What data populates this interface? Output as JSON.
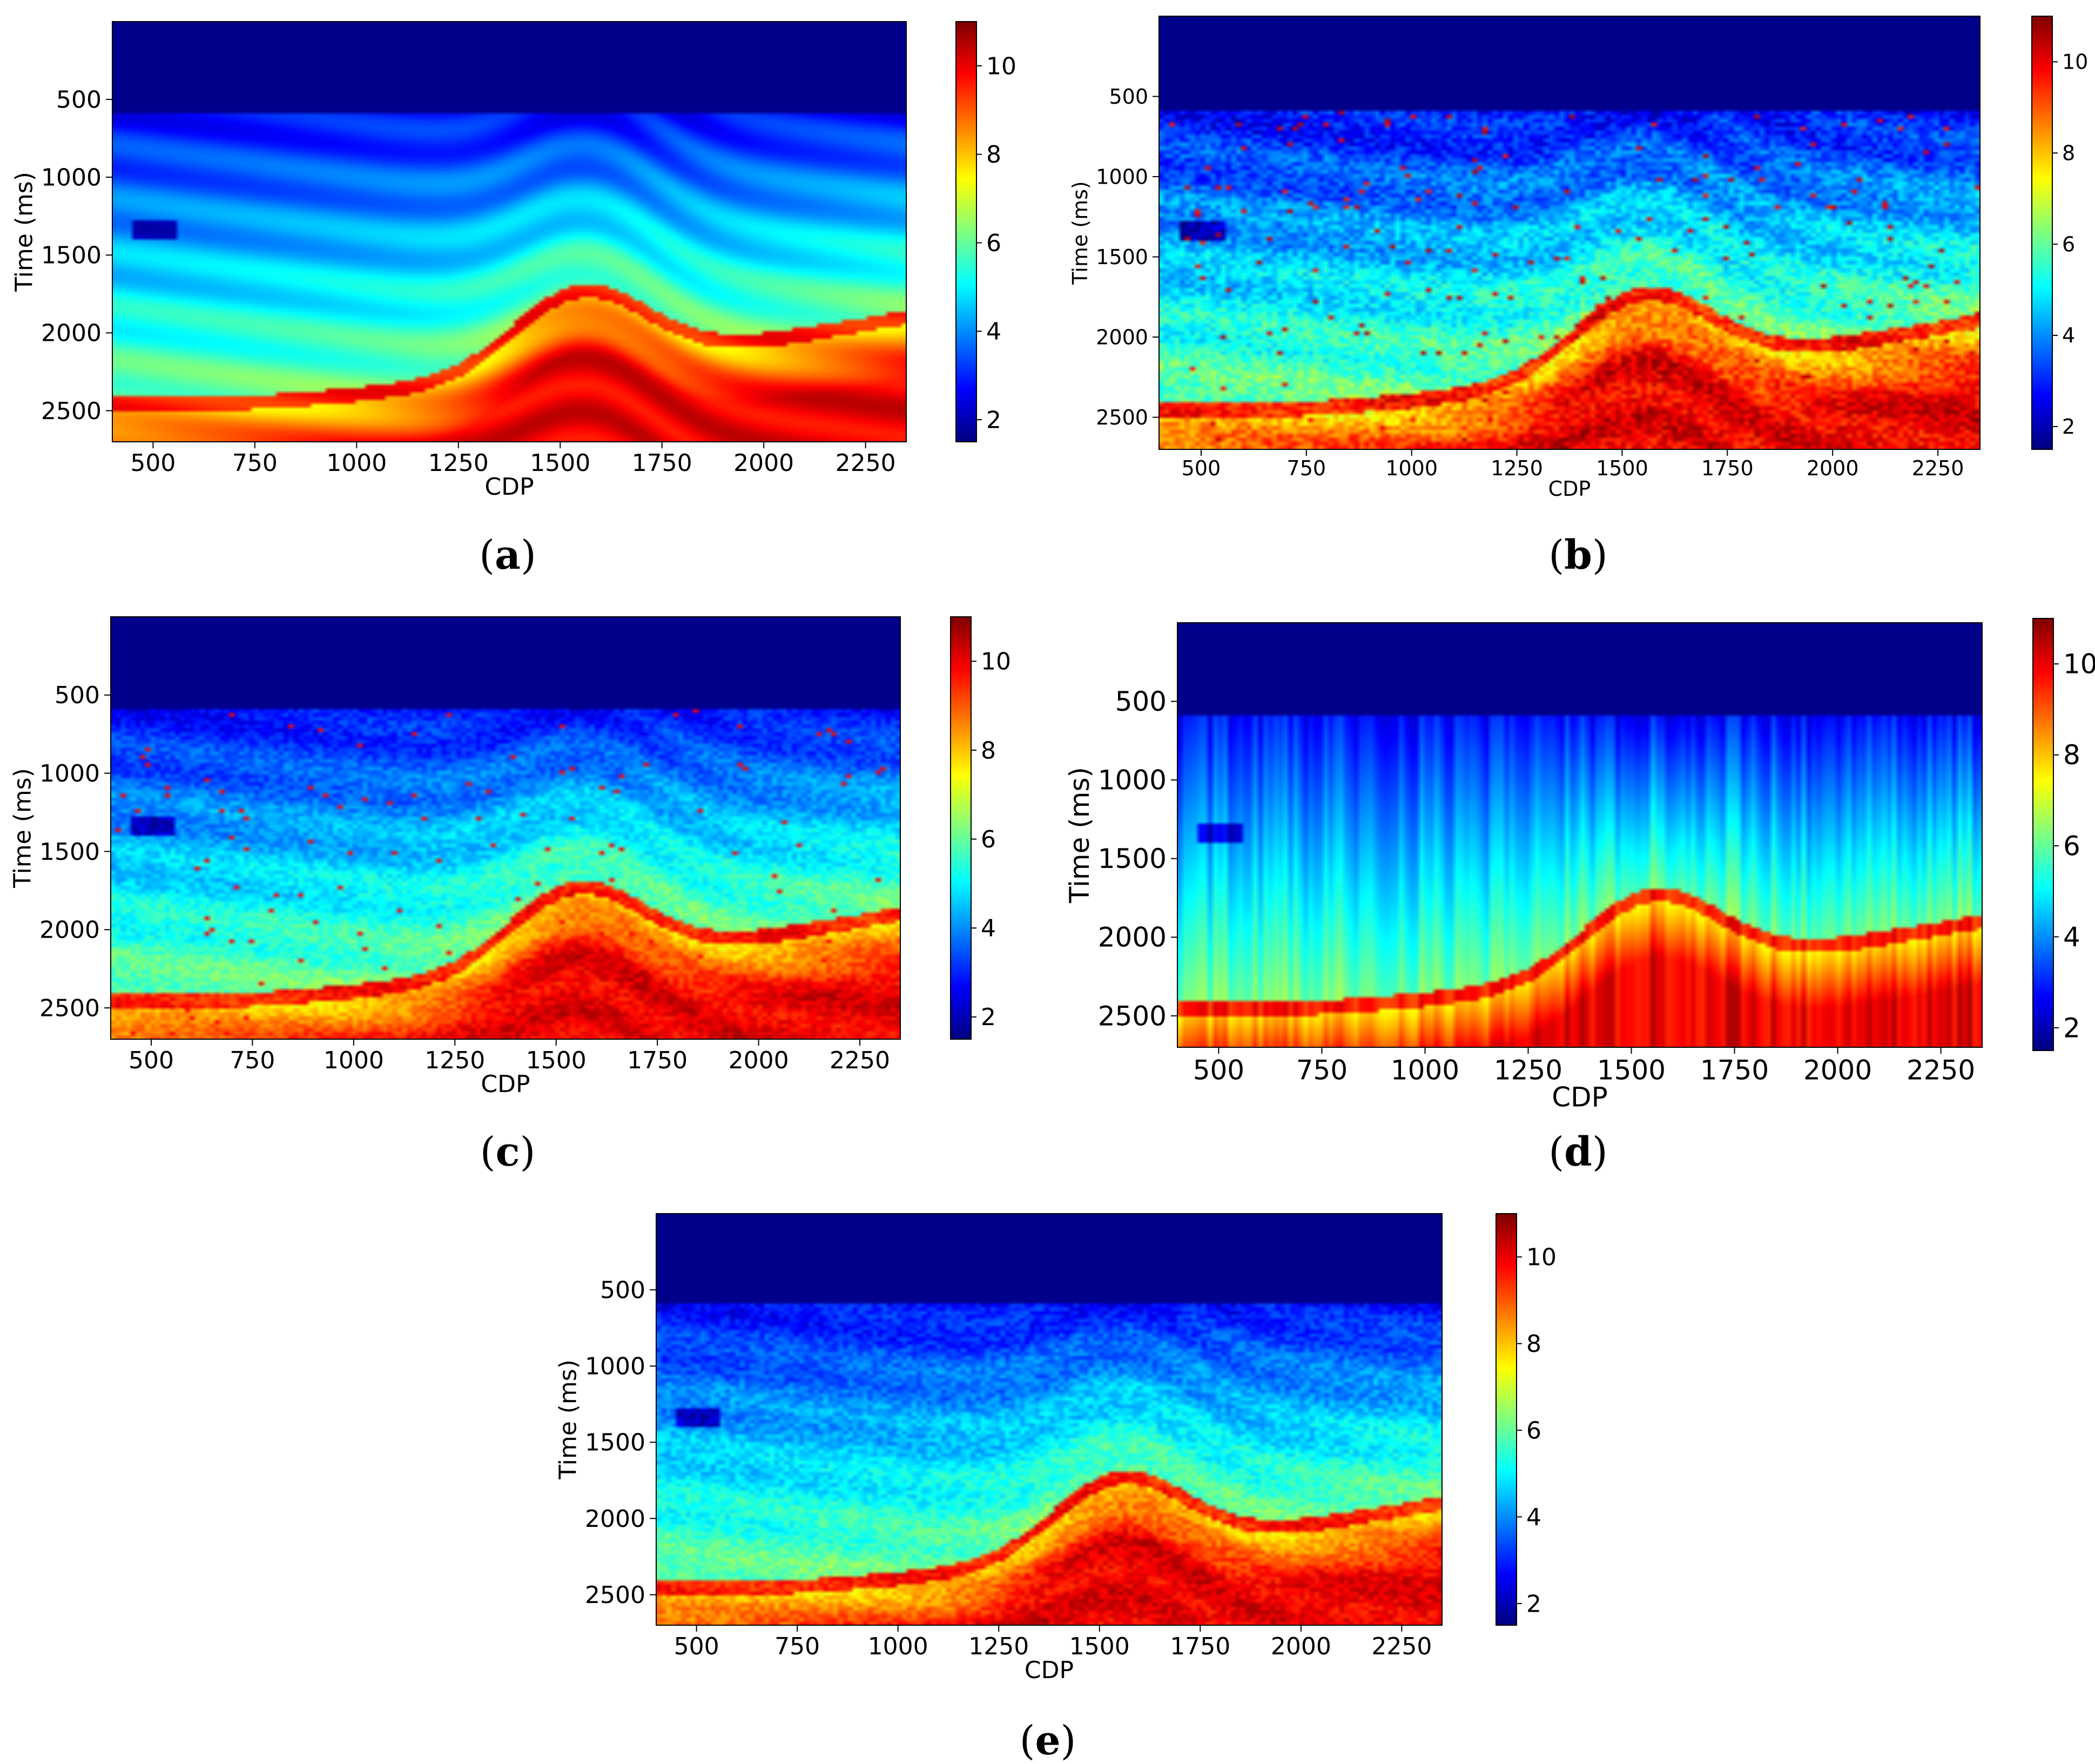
{
  "figure": {
    "colorscale": [
      "#00007f",
      "#0000ff",
      "#007fff",
      "#00ffff",
      "#7fff7f",
      "#ffff00",
      "#ff7f00",
      "#ff0000",
      "#7f0000"
    ],
    "background": "#ffffff"
  },
  "chart_data": [
    {
      "id": "a",
      "caption_open": "(",
      "caption_letter": "a",
      "caption_close": ")",
      "type": "heatmap",
      "title": "",
      "xlabel": "CDP",
      "ylabel": "Time (ms)",
      "xlim": [
        400,
        2350
      ],
      "ylim": [
        2700,
        0
      ],
      "x_ticks": [
        500,
        750,
        1000,
        1250,
        1500,
        1750,
        2000,
        2250
      ],
      "y_ticks": [
        500,
        1000,
        1500,
        2000,
        2500
      ],
      "colorbar": {
        "range": [
          1.5,
          11
        ],
        "ticks": [
          2,
          4,
          6,
          8,
          10
        ]
      },
      "variant": "true"
    },
    {
      "id": "b",
      "caption_open": "(",
      "caption_letter": "b",
      "caption_close": ")",
      "type": "heatmap",
      "title": "",
      "xlabel": "CDP",
      "ylabel": "Time (ms)",
      "xlim": [
        400,
        2350
      ],
      "ylim": [
        2700,
        0
      ],
      "x_ticks": [
        500,
        750,
        1000,
        1250,
        1500,
        1750,
        2000,
        2250
      ],
      "y_ticks": [
        500,
        1000,
        1500,
        2000,
        2500
      ],
      "colorbar": {
        "range": [
          1.5,
          11
        ],
        "ticks": [
          2,
          4,
          6,
          8,
          10
        ]
      },
      "variant": "noisy"
    },
    {
      "id": "c",
      "caption_open": "(",
      "caption_letter": "c",
      "caption_close": ")",
      "type": "heatmap",
      "title": "",
      "xlabel": "CDP",
      "ylabel": "Time (ms)",
      "xlim": [
        400,
        2350
      ],
      "ylim": [
        2700,
        0
      ],
      "x_ticks": [
        500,
        750,
        1000,
        1250,
        1500,
        1750,
        2000,
        2250
      ],
      "y_ticks": [
        500,
        1000,
        1500,
        2000,
        2500
      ],
      "colorbar": {
        "range": [
          1.5,
          11
        ],
        "ticks": [
          2,
          4,
          6,
          8,
          10
        ]
      },
      "variant": "sharp"
    },
    {
      "id": "d",
      "caption_open": "(",
      "caption_letter": "d",
      "caption_close": ")",
      "type": "heatmap",
      "title": "",
      "xlabel": "CDP",
      "ylabel": "Time (ms)",
      "xlim": [
        400,
        2350
      ],
      "ylim": [
        2700,
        0
      ],
      "x_ticks": [
        500,
        750,
        1000,
        1250,
        1500,
        1750,
        2000,
        2250
      ],
      "y_ticks": [
        500,
        1000,
        1500,
        2000,
        2500
      ],
      "colorbar": {
        "range": [
          1.5,
          11
        ],
        "ticks": [
          2,
          4,
          6,
          8,
          10
        ]
      },
      "variant": "smooth"
    },
    {
      "id": "e",
      "caption_open": "(",
      "caption_letter": "e",
      "caption_close": ")",
      "type": "heatmap",
      "title": "",
      "xlabel": "CDP",
      "ylabel": "Time (ms)",
      "xlim": [
        400,
        2350
      ],
      "ylim": [
        2700,
        0
      ],
      "x_ticks": [
        500,
        750,
        1000,
        1250,
        1500,
        1750,
        2000,
        2250
      ],
      "y_ticks": [
        500,
        1000,
        1500,
        2000,
        2500
      ],
      "colorbar": {
        "range": [
          1.5,
          11
        ],
        "ticks": [
          2,
          4,
          6,
          8,
          10
        ]
      },
      "variant": "blend"
    }
  ]
}
